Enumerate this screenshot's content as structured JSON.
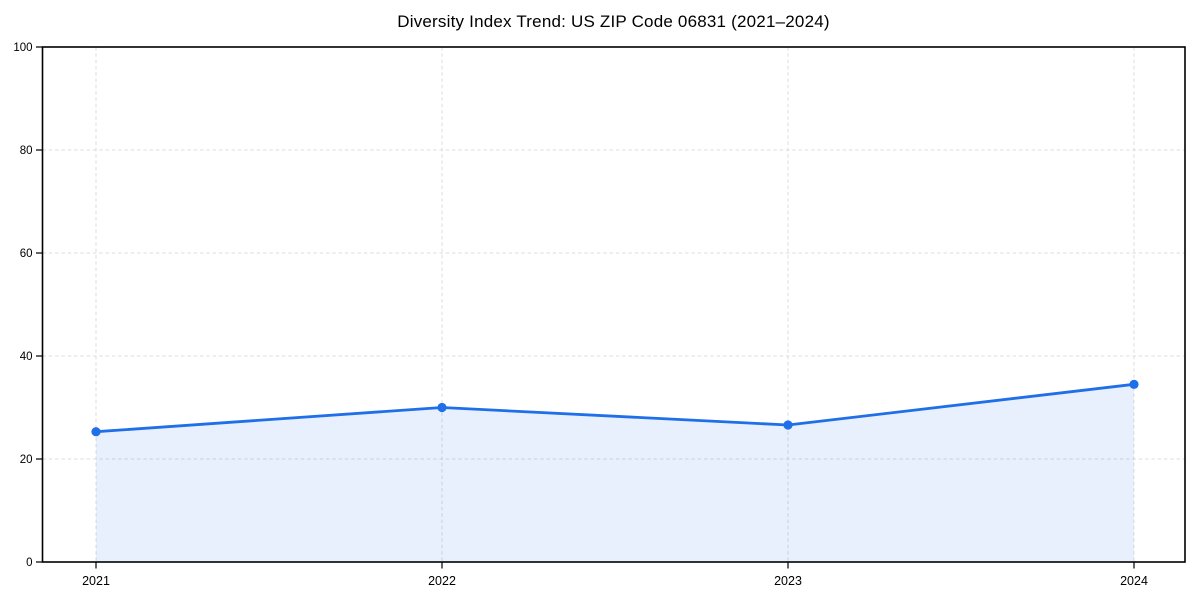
{
  "chart_data": {
    "type": "area",
    "title": "Diversity Index Trend: US ZIP Code 06831 (2021–2024)",
    "categories": [
      "2021",
      "2022",
      "2023",
      "2024"
    ],
    "values": [
      25.3,
      30.0,
      26.6,
      34.5
    ],
    "xlabel": "",
    "ylabel": "",
    "ylim": [
      0,
      100
    ],
    "yticks": [
      0,
      20,
      40,
      60,
      80,
      100
    ],
    "grid": true,
    "legend": false,
    "colors": {
      "line": "#1f6fe8",
      "fill": "rgba(31, 111, 232, 0.10)",
      "grid": "#dcdcdc",
      "axis": "#000000",
      "background": "#ffffff"
    }
  }
}
